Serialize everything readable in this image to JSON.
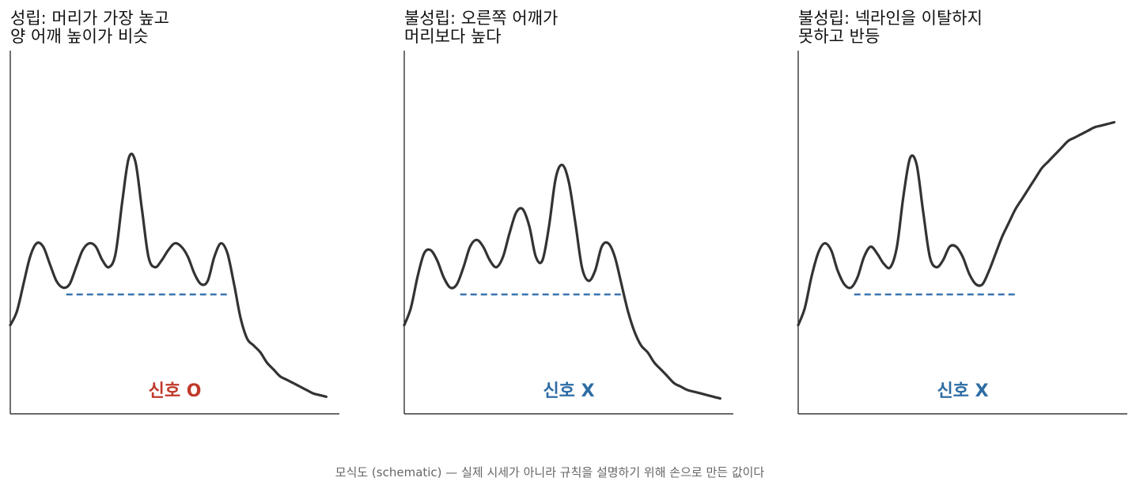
{
  "caption": "모식도 (schematic) — 실제 시세가 아니라 규칙을 설명하기 위해 손으로 만든 값이다",
  "colors": {
    "line": "#333333",
    "neckline": "#3a75b0",
    "signal_yes": "#c0392b",
    "signal_no": "#2e6da4",
    "axis": "#111111"
  },
  "chart_data": [
    {
      "type": "line",
      "title_lines": [
        "성립: 머리가 가장 높고",
        "양 어깨 높이가 비슷"
      ],
      "signal": {
        "label": "신호 O",
        "positive": true
      },
      "xlim": [
        0,
        10
      ],
      "ylim": [
        0,
        10
      ],
      "neckline": {
        "x": [
          1.7,
          6.7
        ],
        "y": 3.5
      },
      "x": [
        0,
        0.2,
        0.4,
        0.6,
        0.8,
        1.0,
        1.2,
        1.4,
        1.6,
        1.8,
        2.0,
        2.2,
        2.4,
        2.6,
        2.8,
        3.0,
        3.2,
        3.4,
        3.6,
        3.8,
        4.0,
        4.2,
        4.4,
        4.6,
        4.8,
        5.0,
        5.2,
        5.4,
        5.6,
        5.8,
        6.0,
        6.2,
        6.4,
        6.6,
        6.8,
        7.0,
        7.2,
        7.4,
        7.6,
        7.8,
        8.0,
        8.2,
        8.4,
        8.6,
        8.8,
        9.0,
        9.2,
        9.4,
        9.6
      ],
      "y": [
        2.6,
        3.0,
        3.8,
        4.6,
        5.0,
        4.9,
        4.4,
        3.9,
        3.7,
        3.8,
        4.3,
        4.8,
        5.0,
        4.9,
        4.5,
        4.3,
        4.7,
        6.2,
        7.5,
        7.4,
        6.0,
        4.6,
        4.3,
        4.5,
        4.8,
        5.0,
        4.9,
        4.6,
        4.1,
        3.8,
        3.9,
        4.6,
        5.0,
        4.7,
        3.8,
        2.8,
        2.2,
        2.0,
        1.8,
        1.5,
        1.3,
        1.1,
        1.0,
        0.9,
        0.8,
        0.7,
        0.6,
        0.55,
        0.5
      ],
      "signal_y": 0.7
    },
    {
      "type": "line",
      "title_lines": [
        "불성립: 오른쪽 어깨가",
        "머리보다 높다"
      ],
      "signal": {
        "label": "신호 X",
        "positive": false
      },
      "xlim": [
        0,
        10
      ],
      "ylim": [
        0,
        10
      ],
      "neckline": {
        "x": [
          1.7,
          6.7
        ],
        "y": 3.5
      },
      "x": [
        0,
        0.2,
        0.4,
        0.6,
        0.8,
        1.0,
        1.2,
        1.4,
        1.6,
        1.8,
        2.0,
        2.2,
        2.4,
        2.6,
        2.8,
        3.0,
        3.2,
        3.4,
        3.6,
        3.8,
        4.0,
        4.2,
        4.4,
        4.6,
        4.8,
        5.0,
        5.2,
        5.4,
        5.6,
        5.8,
        6.0,
        6.2,
        6.4,
        6.6,
        6.8,
        7.0,
        7.2,
        7.4,
        7.6,
        7.8,
        8.0,
        8.2,
        8.4,
        8.6,
        8.8,
        9.0,
        9.2,
        9.4,
        9.6
      ],
      "y": [
        2.6,
        3.1,
        4.0,
        4.7,
        4.8,
        4.5,
        4.0,
        3.7,
        3.8,
        4.3,
        4.9,
        5.1,
        4.9,
        4.5,
        4.3,
        4.6,
        5.3,
        5.9,
        6.0,
        5.5,
        4.6,
        4.5,
        5.5,
        6.9,
        7.3,
        6.8,
        5.6,
        4.3,
        3.9,
        4.2,
        4.9,
        5.0,
        4.6,
        3.8,
        3.0,
        2.4,
        2.0,
        1.8,
        1.5,
        1.3,
        1.1,
        0.9,
        0.8,
        0.7,
        0.65,
        0.6,
        0.55,
        0.5,
        0.45
      ],
      "signal_y": 0.7
    },
    {
      "type": "line",
      "title_lines": [
        "불성립: 넥라인을 이탈하지",
        "못하고 반등"
      ],
      "signal": {
        "label": "신호 X",
        "positive": false
      },
      "xlim": [
        0,
        10
      ],
      "ylim": [
        0,
        10
      ],
      "neckline": {
        "x": [
          1.7,
          6.7
        ],
        "y": 3.5
      },
      "x": [
        0,
        0.2,
        0.4,
        0.6,
        0.8,
        1.0,
        1.2,
        1.4,
        1.6,
        1.8,
        2.0,
        2.2,
        2.4,
        2.6,
        2.8,
        3.0,
        3.2,
        3.4,
        3.6,
        3.8,
        4.0,
        4.2,
        4.4,
        4.6,
        4.8,
        5.0,
        5.2,
        5.4,
        5.6,
        5.8,
        6.0,
        6.2,
        6.4,
        6.6,
        6.8,
        7.0,
        7.2,
        7.4,
        7.6,
        7.8,
        8.0,
        8.2,
        8.4,
        8.6,
        8.8,
        9.0,
        9.2,
        9.4,
        9.6
      ],
      "y": [
        2.6,
        3.1,
        4.0,
        4.7,
        5.0,
        4.8,
        4.2,
        3.8,
        3.7,
        4.0,
        4.6,
        4.9,
        4.7,
        4.4,
        4.3,
        4.9,
        6.4,
        7.5,
        7.3,
        5.9,
        4.6,
        4.3,
        4.5,
        4.9,
        4.9,
        4.6,
        4.1,
        3.8,
        3.8,
        4.2,
        4.7,
        5.2,
        5.6,
        6.0,
        6.3,
        6.6,
        6.9,
        7.2,
        7.4,
        7.6,
        7.8,
        8.0,
        8.1,
        8.2,
        8.3,
        8.4,
        8.45,
        8.5,
        8.55
      ],
      "signal_y": 0.7
    }
  ]
}
